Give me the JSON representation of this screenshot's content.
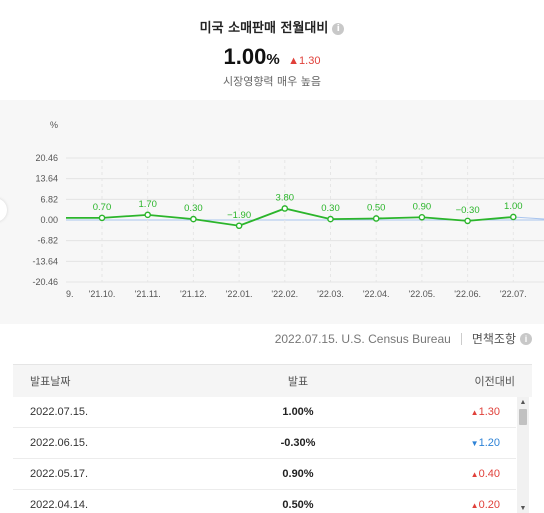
{
  "header": {
    "title": "미국 소매판매 전월대비",
    "info_icon": "info-icon",
    "value": "1.00",
    "unit": "%",
    "delta": "1.30",
    "delta_direction": "up",
    "impact": "시장영향력 매우 높음"
  },
  "colors": {
    "line": "#2bb52b",
    "up": "#e0403a",
    "down": "#2d82d6"
  },
  "chart_data": {
    "type": "line",
    "ylabel": "%",
    "y_ticks": [
      "20.46",
      "13.64",
      "6.82",
      "0.00",
      "-6.82",
      "-13.64",
      "-20.46"
    ],
    "ylim": [
      -20.46,
      20.46
    ],
    "categories": [
      "'21.10.",
      "'21.11.",
      "'21.12.",
      "'22.01.",
      "'22.02.",
      "'22.03.",
      "'22.04.",
      "'22.05.",
      "'22.06.",
      "'22.07."
    ],
    "first_partial_label": "9.",
    "x_start_value": 0.7,
    "values": [
      0.7,
      1.7,
      0.3,
      -1.9,
      3.8,
      0.3,
      0.5,
      0.9,
      -0.3,
      1.0
    ],
    "data_labels": [
      "0.70",
      "1.70",
      "0.30",
      "−1.90",
      "3.80",
      "0.30",
      "0.50",
      "0.90",
      "−0.30",
      "1.00"
    ],
    "grid": true
  },
  "source": {
    "text": "2022.07.15. U.S. Census Bureau",
    "disclaimer": "면책조항",
    "info_icon": "info-icon"
  },
  "table": {
    "headers": {
      "date": "발표날짜",
      "value": "발표",
      "prev": "이전대비"
    },
    "rows": [
      {
        "date": "2022.07.15.",
        "value": "1.00%",
        "prev": "1.30",
        "dir": "up"
      },
      {
        "date": "2022.06.15.",
        "value": "-0.30%",
        "prev": "1.20",
        "dir": "down"
      },
      {
        "date": "2022.05.17.",
        "value": "0.90%",
        "prev": "0.40",
        "dir": "up"
      },
      {
        "date": "2022.04.14.",
        "value": "0.50%",
        "prev": "0.20",
        "dir": "up"
      }
    ]
  }
}
